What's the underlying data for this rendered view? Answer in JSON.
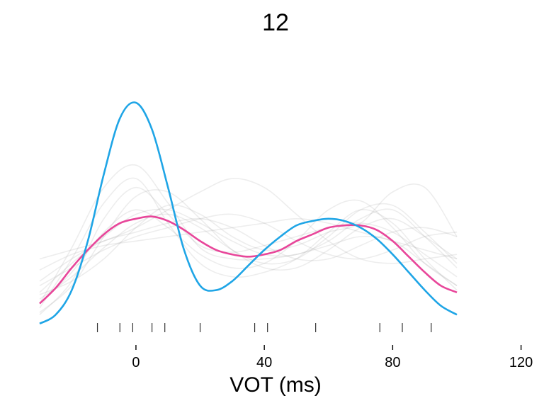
{
  "chart_data": {
    "type": "line",
    "title": "12",
    "xlabel": "VOT (ms)",
    "ylabel": "",
    "xlim": [
      -30,
      100
    ],
    "xticks": [
      0,
      40,
      80,
      120
    ],
    "rug_x": [
      -12,
      -5,
      -1,
      5,
      9,
      20,
      37,
      41,
      56,
      76,
      83,
      92
    ],
    "series": [
      {
        "color": "#1FA5E6",
        "x": [
          -30,
          -25,
          -20,
          -15,
          -10,
          -5,
          0,
          5,
          10,
          15,
          20,
          25,
          30,
          35,
          40,
          45,
          50,
          55,
          60,
          65,
          70,
          75,
          80,
          85,
          90,
          95,
          100
        ],
        "y": [
          0.01,
          0.05,
          0.16,
          0.38,
          0.68,
          0.93,
          1.0,
          0.88,
          0.62,
          0.34,
          0.18,
          0.16,
          0.2,
          0.27,
          0.34,
          0.4,
          0.45,
          0.47,
          0.48,
          0.47,
          0.44,
          0.39,
          0.32,
          0.24,
          0.16,
          0.09,
          0.05
        ]
      },
      {
        "color": "#E8469A",
        "x": [
          -30,
          -25,
          -20,
          -15,
          -10,
          -5,
          0,
          5,
          10,
          15,
          20,
          25,
          30,
          35,
          40,
          45,
          50,
          55,
          60,
          65,
          70,
          75,
          80,
          85,
          90,
          95,
          100
        ],
        "y": [
          0.1,
          0.17,
          0.26,
          0.34,
          0.41,
          0.46,
          0.48,
          0.49,
          0.47,
          0.43,
          0.38,
          0.34,
          0.32,
          0.31,
          0.32,
          0.34,
          0.38,
          0.41,
          0.44,
          0.45,
          0.45,
          0.43,
          0.38,
          0.31,
          0.24,
          0.18,
          0.15
        ]
      }
    ],
    "background_curves": {
      "color": "#9a9a9a",
      "x": [
        -30,
        -20,
        -10,
        0,
        10,
        20,
        30,
        40,
        50,
        60,
        70,
        80,
        90,
        100
      ],
      "curves": [
        [
          0.1,
          0.35,
          0.62,
          0.72,
          0.55,
          0.35,
          0.3,
          0.3,
          0.32,
          0.36,
          0.4,
          0.38,
          0.28,
          0.18
        ],
        [
          0.05,
          0.2,
          0.48,
          0.62,
          0.5,
          0.36,
          0.33,
          0.36,
          0.4,
          0.44,
          0.46,
          0.42,
          0.32,
          0.22
        ],
        [
          0.15,
          0.28,
          0.4,
          0.5,
          0.52,
          0.46,
          0.38,
          0.32,
          0.32,
          0.38,
          0.48,
          0.52,
          0.4,
          0.26
        ],
        [
          0.08,
          0.3,
          0.55,
          0.66,
          0.46,
          0.28,
          0.22,
          0.24,
          0.3,
          0.42,
          0.52,
          0.46,
          0.3,
          0.16
        ],
        [
          0.2,
          0.3,
          0.38,
          0.42,
          0.46,
          0.48,
          0.44,
          0.36,
          0.3,
          0.3,
          0.36,
          0.42,
          0.44,
          0.4
        ],
        [
          0.12,
          0.22,
          0.35,
          0.46,
          0.5,
          0.44,
          0.34,
          0.28,
          0.3,
          0.4,
          0.52,
          0.54,
          0.42,
          0.28
        ],
        [
          0.18,
          0.26,
          0.34,
          0.4,
          0.44,
          0.48,
          0.5,
          0.46,
          0.38,
          0.32,
          0.3,
          0.34,
          0.4,
          0.42
        ],
        [
          0.06,
          0.18,
          0.4,
          0.58,
          0.6,
          0.48,
          0.34,
          0.26,
          0.26,
          0.34,
          0.44,
          0.48,
          0.4,
          0.3
        ],
        [
          0.25,
          0.32,
          0.36,
          0.38,
          0.4,
          0.42,
          0.44,
          0.46,
          0.48,
          0.46,
          0.42,
          0.38,
          0.34,
          0.3
        ],
        [
          0.1,
          0.24,
          0.42,
          0.52,
          0.44,
          0.32,
          0.26,
          0.28,
          0.38,
          0.52,
          0.56,
          0.44,
          0.28,
          0.18
        ],
        [
          0.3,
          0.34,
          0.38,
          0.44,
          0.52,
          0.6,
          0.66,
          0.62,
          0.5,
          0.38,
          0.3,
          0.28,
          0.3,
          0.32
        ],
        [
          0.14,
          0.2,
          0.3,
          0.44,
          0.54,
          0.5,
          0.4,
          0.34,
          0.36,
          0.42,
          0.46,
          0.6,
          0.62,
          0.4
        ]
      ]
    },
    "y_max_display": 1.0,
    "grid": false,
    "legend": "none"
  }
}
